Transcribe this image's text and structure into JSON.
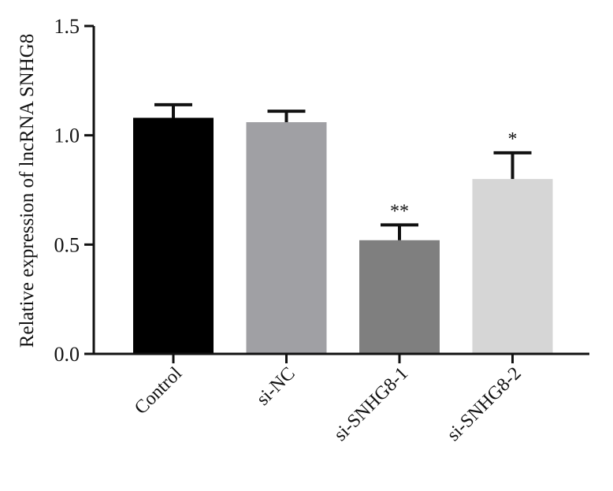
{
  "chart_data": {
    "type": "bar",
    "title": "",
    "xlabel": "",
    "ylabel": "Relative expression of lncRNA SNHG8",
    "ylim": [
      0,
      1.5
    ],
    "yticks": [
      "0.0",
      "0.5",
      "1.0",
      "1.5"
    ],
    "categories": [
      "Control",
      "si-NC",
      "si-SNHG8-1",
      "si-SNHG8-2"
    ],
    "values": [
      1.08,
      1.06,
      0.52,
      0.8
    ],
    "errors": [
      0.06,
      0.05,
      0.07,
      0.12
    ],
    "significance": [
      "",
      "",
      "**",
      "*"
    ],
    "colors": [
      "#000000",
      "#a0a0a4",
      "#7f7f7f",
      "#d6d6d6"
    ],
    "grid": false,
    "legend": "none"
  }
}
